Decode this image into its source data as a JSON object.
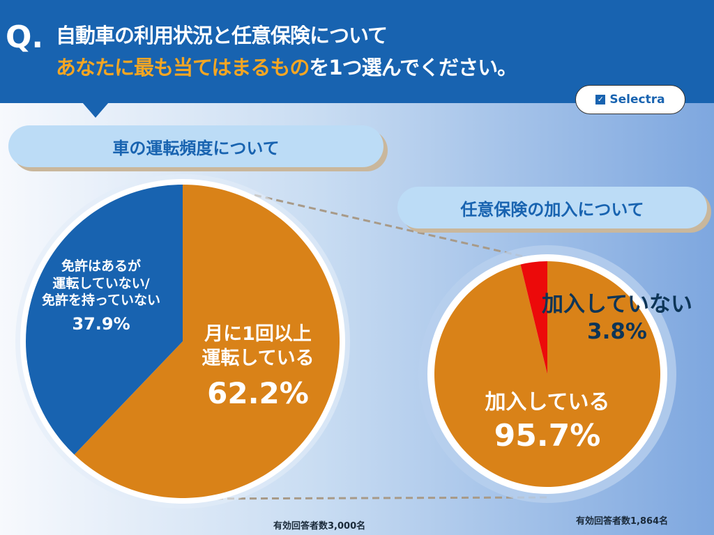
{
  "header": {
    "q": "Q.",
    "line1": "自動車の利用状況と任意保険について",
    "line2_highlight": "あなたに最も当てはまるもの",
    "line2_rest": "を1つ選んでください。"
  },
  "logo": {
    "text": "Selectra",
    "icon": "checkbox-icon"
  },
  "colors": {
    "header": "#1863b0",
    "orange": "#d98218",
    "blue": "#1863b0",
    "red": "#ec0a0a",
    "highlight": "#f5a623"
  },
  "chart_data": [
    {
      "type": "pie",
      "title": "車の運転頻度について",
      "slices": [
        {
          "label": "月に1回以上運転している",
          "label_lines": [
            "月に1回以上",
            "運転している"
          ],
          "value": 62.2,
          "value_label": "62.2%",
          "color": "#d98218"
        },
        {
          "label": "免許はあるが運転していない/免許を持っていない",
          "label_lines": [
            "免許はあるが",
            "運転していない/",
            "免許を持っていない"
          ],
          "value": 37.9,
          "value_label": "37.9%",
          "color": "#1863b0"
        }
      ],
      "note": "有効回答者数3,000名"
    },
    {
      "type": "pie",
      "title": "任意保険の加入について",
      "slices": [
        {
          "label": "加入している",
          "value": 95.7,
          "value_label": "95.7%",
          "color": "#d98218"
        },
        {
          "label": "加入していない",
          "value": 3.8,
          "value_label": "3.8%",
          "color": "#ec0a0a"
        }
      ],
      "note": "有効回答者数1,864名"
    }
  ]
}
